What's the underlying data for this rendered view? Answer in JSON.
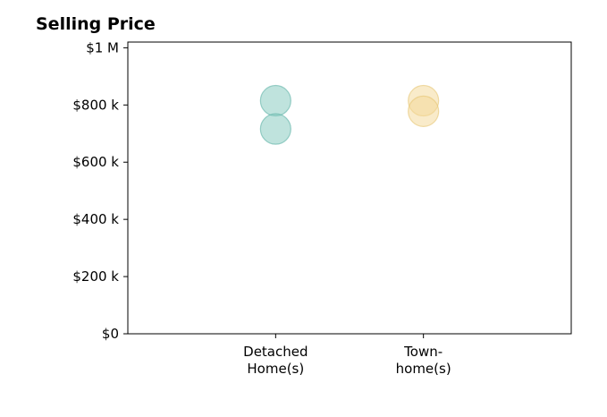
{
  "chart_data": {
    "type": "scatter",
    "title": "Selling Price",
    "xlabel": "",
    "ylabel": "",
    "categories": [
      "Detached\nHome(s)",
      "Town-\nhome(s)"
    ],
    "y_ticks": [
      {
        "value": 0,
        "label": "$0"
      },
      {
        "value": 200000,
        "label": "$200 k"
      },
      {
        "value": 400000,
        "label": "$400 k"
      },
      {
        "value": 600000,
        "label": "$600 k"
      },
      {
        "value": 800000,
        "label": "$800 k"
      },
      {
        "value": 1000000,
        "label": "$1 M"
      }
    ],
    "ylim": [
      0,
      1020000
    ],
    "grid": false,
    "series": [
      {
        "category_index": 0,
        "values": [
          815000,
          716000
        ],
        "color": "#7fc8bc",
        "stroke": "#5fb3a6"
      },
      {
        "category_index": 1,
        "values": [
          815000,
          778000
        ],
        "color": "#f3d795",
        "stroke": "#e6c471"
      }
    ]
  }
}
